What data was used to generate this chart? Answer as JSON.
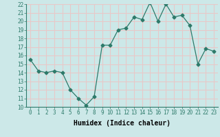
{
  "x": [
    0,
    1,
    2,
    3,
    4,
    5,
    6,
    7,
    8,
    9,
    10,
    11,
    12,
    13,
    14,
    15,
    16,
    17,
    18,
    19,
    20,
    21,
    22,
    23
  ],
  "y": [
    15.5,
    14.2,
    14.0,
    14.2,
    14.0,
    12.0,
    11.0,
    10.2,
    11.2,
    17.2,
    17.2,
    19.0,
    19.2,
    20.5,
    20.2,
    22.2,
    20.0,
    22.0,
    20.5,
    20.7,
    19.5,
    15.0,
    16.8,
    16.5
  ],
  "xlabel": "Humidex (Indice chaleur)",
  "ylim": [
    10,
    22
  ],
  "xlim_min": -0.5,
  "xlim_max": 23.5,
  "yticks": [
    10,
    11,
    12,
    13,
    14,
    15,
    16,
    17,
    18,
    19,
    20,
    21,
    22
  ],
  "xticks": [
    0,
    1,
    2,
    3,
    4,
    5,
    6,
    7,
    8,
    9,
    10,
    11,
    12,
    13,
    14,
    15,
    16,
    17,
    18,
    19,
    20,
    21,
    22,
    23
  ],
  "line_color": "#2d7a6a",
  "marker": "D",
  "marker_size": 2.5,
  "bg_color": "#cce8e8",
  "grid_color": "#e8c8c8",
  "tick_fontsize": 5.5,
  "xlabel_fontsize": 7.0,
  "xlabel_fontweight": "bold"
}
